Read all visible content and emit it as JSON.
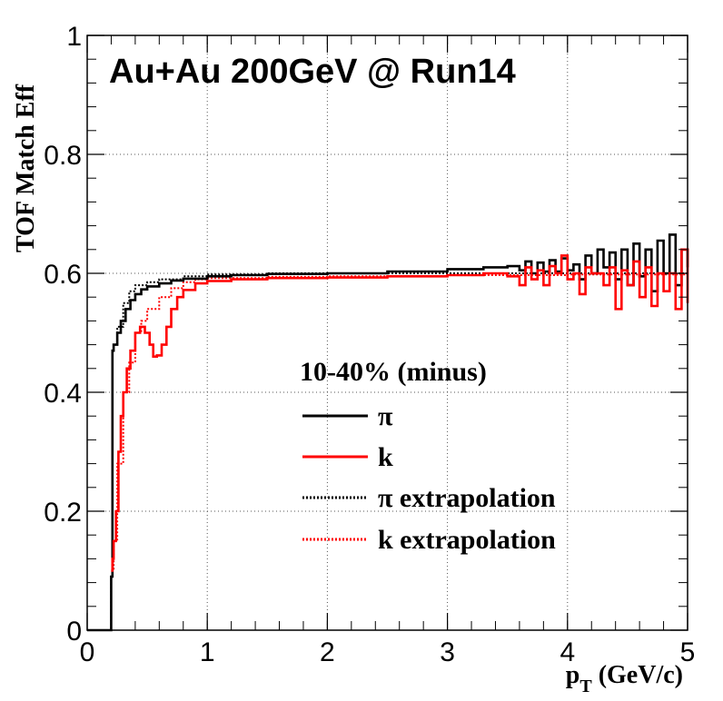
{
  "chart_data": {
    "type": "line",
    "title": "Au+Au 200GeV @ Run14",
    "ylabel": "TOF Match Eff",
    "xlabel": {
      "main": "p",
      "sub": "T",
      "rest": " (GeV/c)"
    },
    "xlim": [
      0,
      5
    ],
    "ylim": [
      0,
      1
    ],
    "x_ticks": [
      "0",
      "1",
      "2",
      "3",
      "4",
      "5"
    ],
    "y_ticks": [
      "0",
      "0.2",
      "0.4",
      "0.6",
      "0.8",
      "1"
    ],
    "grid": true,
    "legend": {
      "header": "10-40% (minus)",
      "placement": "center-right",
      "entries": [
        {
          "label": "π",
          "color": "#000000",
          "style": "solid"
        },
        {
          "label": "k",
          "color": "#ff0000",
          "style": "solid"
        },
        {
          "label": "π extrapolation",
          "color": "#000000",
          "style": "dotted"
        },
        {
          "label": "k extrapolation",
          "color": "#ff0000",
          "style": "dotted"
        }
      ]
    },
    "series": [
      {
        "name": "π",
        "color": "#000000",
        "style": "solid",
        "points": [
          [
            0,
            0
          ],
          [
            0.19,
            0
          ],
          [
            0.2,
            0.09
          ],
          [
            0.21,
            0.47
          ],
          [
            0.22,
            0.48
          ],
          [
            0.25,
            0.5
          ],
          [
            0.28,
            0.52
          ],
          [
            0.32,
            0.54
          ],
          [
            0.36,
            0.555
          ],
          [
            0.4,
            0.565
          ],
          [
            0.45,
            0.573
          ],
          [
            0.5,
            0.578
          ],
          [
            0.6,
            0.583
          ],
          [
            0.7,
            0.588
          ],
          [
            0.8,
            0.591
          ],
          [
            1.0,
            0.595
          ],
          [
            1.2,
            0.597
          ],
          [
            1.5,
            0.599
          ],
          [
            2.0,
            0.6
          ],
          [
            2.5,
            0.603
          ],
          [
            3.0,
            0.607
          ],
          [
            3.3,
            0.61
          ],
          [
            3.5,
            0.612
          ],
          [
            3.6,
            0.605
          ],
          [
            3.65,
            0.62
          ],
          [
            3.7,
            0.6
          ],
          [
            3.75,
            0.618
          ],
          [
            3.8,
            0.603
          ],
          [
            3.85,
            0.622
          ],
          [
            3.9,
            0.603
          ],
          [
            3.95,
            0.625
          ],
          [
            4.0,
            0.605
          ],
          [
            4.05,
            0.615
          ],
          [
            4.1,
            0.59
          ],
          [
            4.15,
            0.63
          ],
          [
            4.2,
            0.6
          ],
          [
            4.25,
            0.64
          ],
          [
            4.3,
            0.61
          ],
          [
            4.35,
            0.635
          ],
          [
            4.4,
            0.59
          ],
          [
            4.45,
            0.64
          ],
          [
            4.5,
            0.58
          ],
          [
            4.55,
            0.65
          ],
          [
            4.6,
            0.595
          ],
          [
            4.65,
            0.64
          ],
          [
            4.7,
            0.57
          ],
          [
            4.75,
            0.655
          ],
          [
            4.8,
            0.6
          ],
          [
            4.85,
            0.665
          ],
          [
            4.9,
            0.58
          ],
          [
            4.95,
            0.64
          ],
          [
            5.0,
            0.61
          ]
        ]
      },
      {
        "name": "k",
        "color": "#ff0000",
        "style": "solid",
        "points": [
          [
            0.2,
            0.1
          ],
          [
            0.21,
            0.12
          ],
          [
            0.22,
            0.15
          ],
          [
            0.24,
            0.2
          ],
          [
            0.26,
            0.3
          ],
          [
            0.28,
            0.36
          ],
          [
            0.3,
            0.4
          ],
          [
            0.33,
            0.44
          ],
          [
            0.36,
            0.47
          ],
          [
            0.4,
            0.5
          ],
          [
            0.44,
            0.51
          ],
          [
            0.48,
            0.5
          ],
          [
            0.52,
            0.48
          ],
          [
            0.55,
            0.46
          ],
          [
            0.58,
            0.462
          ],
          [
            0.62,
            0.48
          ],
          [
            0.66,
            0.51
          ],
          [
            0.7,
            0.54
          ],
          [
            0.75,
            0.56
          ],
          [
            0.8,
            0.572
          ],
          [
            0.9,
            0.583
          ],
          [
            1.0,
            0.587
          ],
          [
            1.2,
            0.59
          ],
          [
            1.5,
            0.592
          ],
          [
            2.0,
            0.593
          ],
          [
            2.5,
            0.595
          ],
          [
            3.0,
            0.597
          ],
          [
            3.3,
            0.6
          ],
          [
            3.5,
            0.595
          ],
          [
            3.6,
            0.58
          ],
          [
            3.65,
            0.61
          ],
          [
            3.7,
            0.59
          ],
          [
            3.75,
            0.605
          ],
          [
            3.8,
            0.58
          ],
          [
            3.85,
            0.612
          ],
          [
            3.9,
            0.6
          ],
          [
            3.95,
            0.63
          ],
          [
            4.0,
            0.59
          ],
          [
            4.05,
            0.6
          ],
          [
            4.1,
            0.565
          ],
          [
            4.15,
            0.61
          ],
          [
            4.2,
            0.6
          ],
          [
            4.25,
            0.6
          ],
          [
            4.3,
            0.58
          ],
          [
            4.35,
            0.61
          ],
          [
            4.4,
            0.54
          ],
          [
            4.45,
            0.605
          ],
          [
            4.5,
            0.58
          ],
          [
            4.55,
            0.62
          ],
          [
            4.6,
            0.56
          ],
          [
            4.65,
            0.61
          ],
          [
            4.7,
            0.545
          ],
          [
            4.75,
            0.6
          ],
          [
            4.8,
            0.57
          ],
          [
            4.85,
            0.6
          ],
          [
            4.9,
            0.54
          ],
          [
            4.95,
            0.64
          ],
          [
            5.0,
            0.55
          ]
        ]
      },
      {
        "name": "π extrapolation",
        "color": "#000000",
        "style": "dotted",
        "points": [
          [
            0,
            0
          ],
          [
            0.19,
            0
          ],
          [
            0.2,
            0.09
          ],
          [
            0.21,
            0.47
          ],
          [
            0.22,
            0.48
          ],
          [
            0.25,
            0.51
          ],
          [
            0.3,
            0.55
          ],
          [
            0.35,
            0.57
          ],
          [
            0.4,
            0.58
          ],
          [
            0.5,
            0.585
          ],
          [
            0.6,
            0.59
          ],
          [
            0.8,
            0.595
          ],
          [
            1.0,
            0.598
          ],
          [
            1.5,
            0.6
          ],
          [
            2.0,
            0.6
          ],
          [
            3.0,
            0.6
          ],
          [
            4.0,
            0.6
          ],
          [
            5.0,
            0.6
          ]
        ]
      },
      {
        "name": "k extrapolation",
        "color": "#ff0000",
        "style": "dotted",
        "points": [
          [
            0.2,
            0.1
          ],
          [
            0.22,
            0.15
          ],
          [
            0.25,
            0.28
          ],
          [
            0.3,
            0.4
          ],
          [
            0.35,
            0.45
          ],
          [
            0.4,
            0.5
          ],
          [
            0.45,
            0.52
          ],
          [
            0.5,
            0.54
          ],
          [
            0.6,
            0.56
          ],
          [
            0.7,
            0.575
          ],
          [
            0.8,
            0.585
          ],
          [
            0.9,
            0.59
          ],
          [
            1.0,
            0.592
          ],
          [
            1.5,
            0.594
          ],
          [
            2.0,
            0.595
          ],
          [
            3.0,
            0.597
          ],
          [
            4.0,
            0.598
          ],
          [
            5.0,
            0.598
          ]
        ]
      }
    ]
  }
}
